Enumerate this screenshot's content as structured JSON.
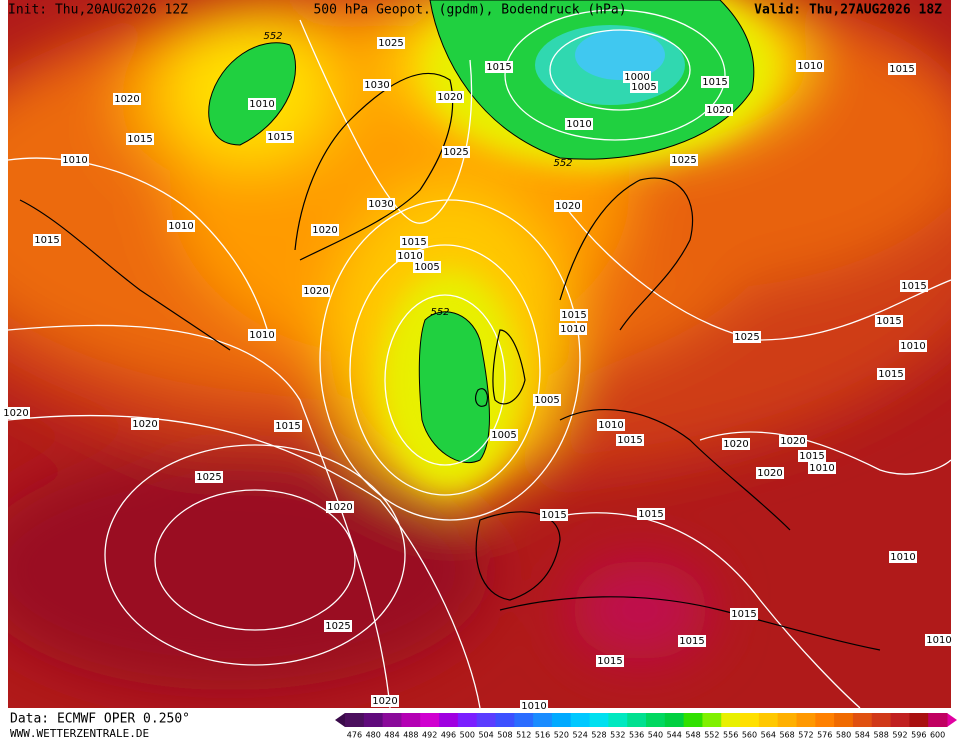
{
  "header": {
    "init": "Init: Thu,20AUG2026 12Z",
    "title": "500 hPa Geopot. (gpdm), Bodendruck (hPa)",
    "valid": "Valid: Thu,27AUG2026 18Z"
  },
  "isobar_labels": [
    "552",
    "1025",
    "1015",
    "1020",
    "1010",
    "1030",
    "1020",
    "1000",
    "1005",
    "1015",
    "1010",
    "1015",
    "1015",
    "1015",
    "1010",
    "1020",
    "1010",
    "1025",
    "552",
    "1025",
    "1030",
    "1020",
    "1010",
    "1020",
    "1015",
    "1015",
    "1010",
    "1005",
    "1020",
    "1015",
    "552",
    "1015",
    "1010",
    "1010",
    "1025",
    "1015",
    "1010",
    "1015",
    "1005",
    "1020",
    "1020",
    "1015",
    "1010",
    "1005",
    "1015",
    "1020",
    "1020",
    "1015",
    "1010",
    "1020",
    "1025",
    "1020",
    "1015",
    "1015",
    "1010",
    "1025",
    "1015",
    "1015",
    "1015",
    "1010",
    "1020",
    "1010"
  ],
  "colorbar": {
    "labels": [
      476,
      480,
      484,
      488,
      492,
      496,
      500,
      504,
      508,
      512,
      516,
      520,
      524,
      528,
      532,
      536,
      540,
      544,
      548,
      552,
      556,
      560,
      564,
      568,
      572,
      576,
      580,
      584,
      588,
      592,
      596,
      600
    ],
    "colors": [
      "#4b0f5e",
      "#600a7c",
      "#8a0a9a",
      "#b400b4",
      "#d000d0",
      "#a000e0",
      "#7a1fff",
      "#5a3cff",
      "#3c50ff",
      "#2a6cff",
      "#1a8cff",
      "#00aaff",
      "#00c8ff",
      "#00e0f0",
      "#00e8c0",
      "#00e090",
      "#00d860",
      "#00d040",
      "#30e000",
      "#80f000",
      "#e8f000",
      "#ffe000",
      "#ffc800",
      "#ffb000",
      "#ff9800",
      "#ff8000",
      "#f06a00",
      "#e05010",
      "#d03818",
      "#c02020",
      "#a81010",
      "#c00060"
    ]
  },
  "footer": {
    "source": "Data: ECMWF OPER 0.250°",
    "site": "WWW.WETTERZENTRALE.DE"
  }
}
